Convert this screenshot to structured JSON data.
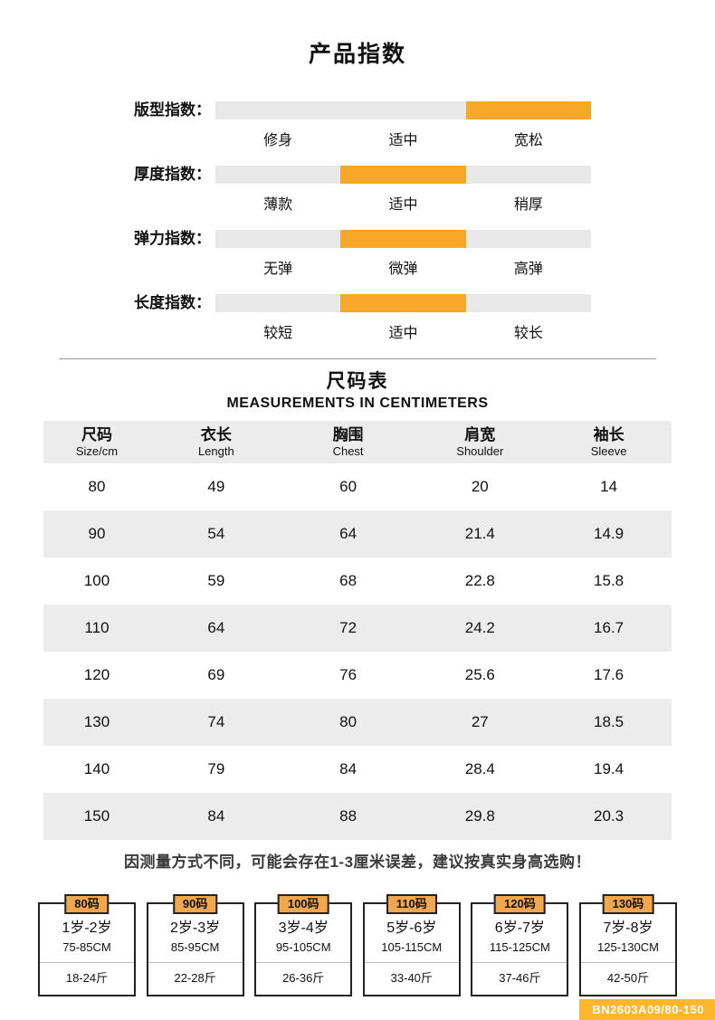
{
  "page": {
    "title": "产品指数",
    "size_chart": {
      "title": "尺码表",
      "subtitle": "MEASUREMENTS IN CENTIMETERS"
    },
    "note": "因测量方式不同，可能会存在1-3厘米误差，建议按真实身高选购！",
    "product_code": "BN2603A09/80-150"
  },
  "colors": {
    "accent_orange": "#F6A829",
    "bar_gray": "#E8E8E8",
    "row_gray": "#ECECEC",
    "card_tab_orange": "#F2A64E",
    "badge_orange": "#FFB62C"
  },
  "indices": [
    {
      "label": "版型指数：",
      "options": [
        "修身",
        "适中",
        "宽松"
      ],
      "active_index": 2
    },
    {
      "label": "厚度指数：",
      "options": [
        "薄款",
        "适中",
        "稍厚"
      ],
      "active_index": 1
    },
    {
      "label": "弹力指数：",
      "options": [
        "无弹",
        "微弹",
        "高弹"
      ],
      "active_index": 1
    },
    {
      "label": "长度指数：",
      "options": [
        "较短",
        "适中",
        "较长"
      ],
      "active_index": 1
    }
  ],
  "size_table": {
    "headers": [
      {
        "cn": "尺码",
        "en": "Size/cm"
      },
      {
        "cn": "衣长",
        "en": "Length"
      },
      {
        "cn": "胸围",
        "en": "Chest"
      },
      {
        "cn": "肩宽",
        "en": "Shoulder"
      },
      {
        "cn": "袖长",
        "en": "Sleeve"
      }
    ],
    "rows": [
      [
        "80",
        "49",
        "60",
        "20",
        "14"
      ],
      [
        "90",
        "54",
        "64",
        "21.4",
        "14.9"
      ],
      [
        "100",
        "59",
        "68",
        "22.8",
        "15.8"
      ],
      [
        "110",
        "64",
        "72",
        "24.2",
        "16.7"
      ],
      [
        "120",
        "69",
        "76",
        "25.6",
        "17.6"
      ],
      [
        "130",
        "74",
        "80",
        "27",
        "18.5"
      ],
      [
        "140",
        "79",
        "84",
        "28.4",
        "19.4"
      ],
      [
        "150",
        "84",
        "88",
        "29.8",
        "20.3"
      ]
    ]
  },
  "size_cards": [
    {
      "size": "80码",
      "age": "1岁-2岁",
      "height": "75-85CM",
      "weight": "18-24斤"
    },
    {
      "size": "90码",
      "age": "2岁-3岁",
      "height": "85-95CM",
      "weight": "22-28斤"
    },
    {
      "size": "100码",
      "age": "3岁-4岁",
      "height": "95-105CM",
      "weight": "26-36斤"
    },
    {
      "size": "110码",
      "age": "5岁-6岁",
      "height": "105-115CM",
      "weight": "33-40斤"
    },
    {
      "size": "120码",
      "age": "6岁-7岁",
      "height": "115-125CM",
      "weight": "37-46斤"
    },
    {
      "size": "130码",
      "age": "7岁-8岁",
      "height": "125-130CM",
      "weight": "42-50斤"
    }
  ]
}
